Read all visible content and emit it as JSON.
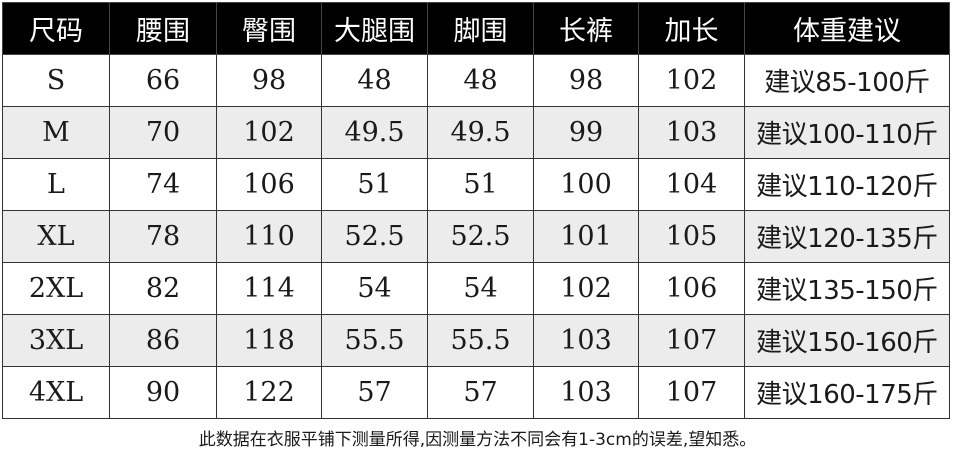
{
  "table": {
    "headers": [
      "尺码",
      "腰围",
      "臀围",
      "大腿围",
      "脚围",
      "长裤",
      "加长",
      "体重建议"
    ],
    "rows": [
      [
        "S",
        "66",
        "98",
        "48",
        "48",
        "98",
        "102",
        "建议85-100斤"
      ],
      [
        "M",
        "70",
        "102",
        "49.5",
        "49.5",
        "99",
        "103",
        "建议100-110斤"
      ],
      [
        "L",
        "74",
        "106",
        "51",
        "51",
        "100",
        "104",
        "建议110-120斤"
      ],
      [
        "XL",
        "78",
        "110",
        "52.5",
        "52.5",
        "101",
        "105",
        "建议120-135斤"
      ],
      [
        "2XL",
        "82",
        "114",
        "54",
        "54",
        "102",
        "106",
        "建议135-150斤"
      ],
      [
        "3XL",
        "86",
        "118",
        "55.5",
        "55.5",
        "103",
        "107",
        "建议150-160斤"
      ],
      [
        "4XL",
        "90",
        "122",
        "57",
        "57",
        "103",
        "107",
        "建议160-175斤"
      ]
    ]
  },
  "footnote": "此数据在衣服平铺下测量所得,因测量方法不同会有1-3cm的误差,望知悉。",
  "colors": {
    "header_bg": "#000000",
    "header_text": "#ffffff",
    "shaded_row_bg": "#ececec",
    "border": "#333333"
  }
}
